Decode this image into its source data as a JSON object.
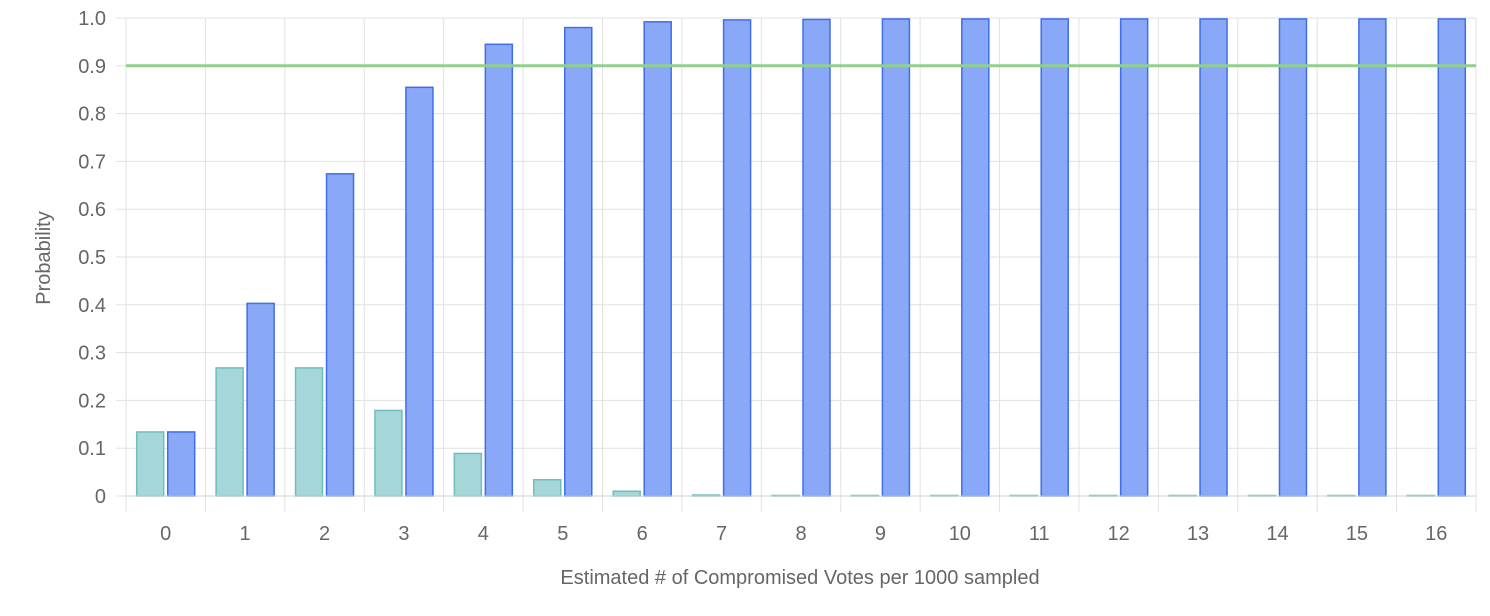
{
  "chart_data": {
    "type": "bar",
    "title": "",
    "xlabel": "Estimated # of Compromised Votes per 1000 sampled",
    "ylabel": "Probability",
    "ylim": [
      0,
      1.0
    ],
    "yticks": [
      0,
      0.1,
      0.2,
      0.3,
      0.4,
      0.5,
      0.6,
      0.7,
      0.8,
      0.9,
      1.0
    ],
    "ytick_labels": [
      "0",
      "0.1",
      "0.2",
      "0.3",
      "0.4",
      "0.5",
      "0.6",
      "0.7",
      "0.8",
      "0.9",
      "1.0"
    ],
    "categories": [
      "0",
      "1",
      "2",
      "3",
      "4",
      "5",
      "6",
      "7",
      "8",
      "9",
      "10",
      "11",
      "12",
      "13",
      "14",
      "15",
      "16"
    ],
    "grid": true,
    "legend": "none",
    "series": [
      {
        "values": [
          0.134,
          0.268,
          0.268,
          0.179,
          0.089,
          0.034,
          0.01,
          0.002,
          0.0005,
          0.0001,
          0.0,
          0.0,
          0.0,
          0.0,
          0.0,
          0.0,
          0.0
        ],
        "fill": "#a6d7d8",
        "stroke": "#6fbdbd"
      },
      {
        "values": [
          0.134,
          0.403,
          0.674,
          0.855,
          0.945,
          0.98,
          0.992,
          0.996,
          0.997,
          0.998,
          0.998,
          0.998,
          0.998,
          0.998,
          0.998,
          0.998,
          0.998
        ],
        "fill": "#8aa8f8",
        "stroke": "#3f6ee8"
      }
    ],
    "reference_line": {
      "y": 0.9,
      "color": "#8fd18a"
    }
  }
}
